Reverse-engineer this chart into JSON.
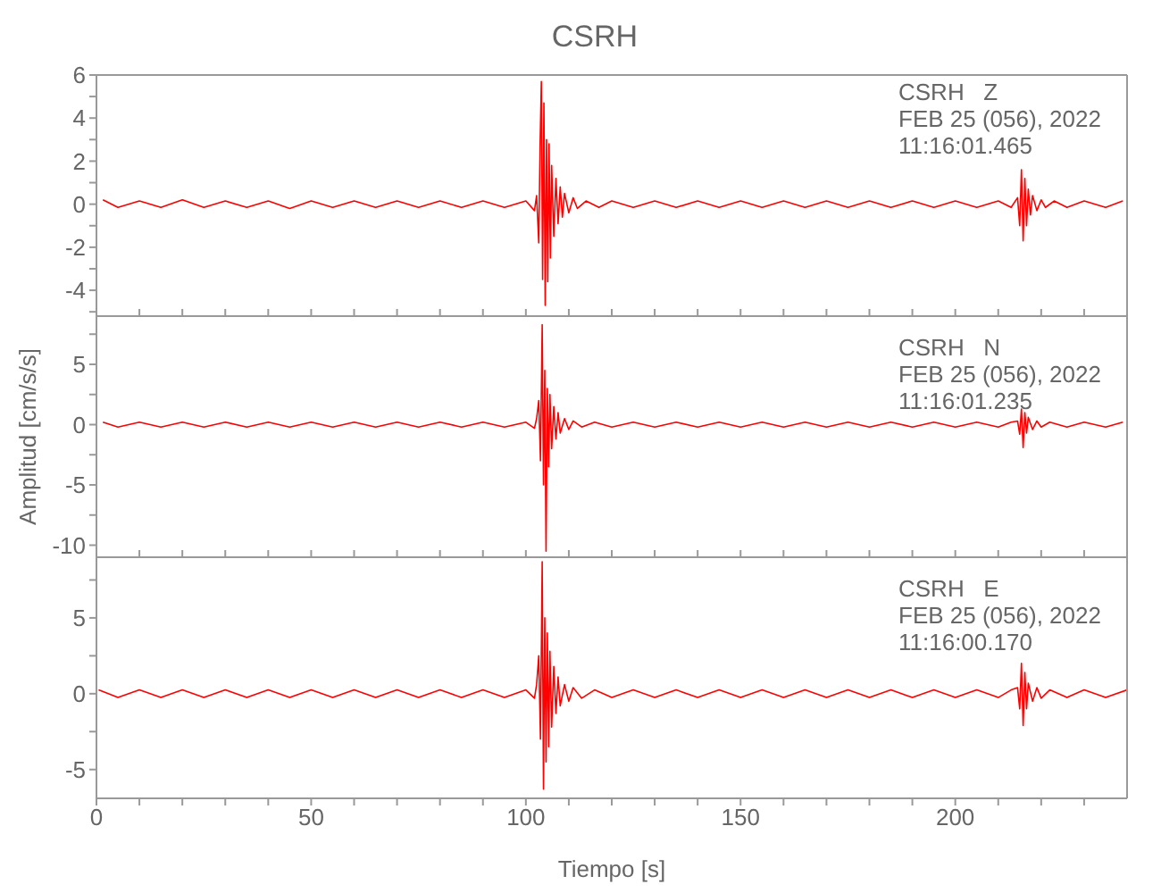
{
  "chart_data": [
    {
      "type": "line",
      "title": "CSRH",
      "annotations": [
        "CSRH   Z",
        "FEB 25 (056), 2022",
        "11:16:01.465"
      ],
      "tick_labels": "y",
      "marker": "none",
      "xlim": [
        0,
        240
      ],
      "ylim": [
        -5.2,
        6
      ],
      "xticks": [
        0,
        10,
        20,
        30,
        40,
        50,
        60,
        70,
        80,
        90,
        100,
        110,
        120,
        130,
        140,
        150,
        160,
        170,
        180,
        190,
        200,
        210,
        220,
        230
      ],
      "yticks": [
        {
          "value": -5,
          "label": null
        },
        -4,
        {
          "value": -3,
          "label": null
        },
        -2,
        {
          "value": -1,
          "label": null
        },
        0,
        {
          "value": 1,
          "label": null
        },
        2,
        {
          "value": 3,
          "label": null
        },
        4,
        {
          "value": 5,
          "label": null
        },
        6
      ],
      "series": [
        {
          "color": "#ff0000",
          "x": [
            1.5,
            5,
            10,
            15,
            20,
            25,
            30,
            35,
            40,
            45,
            50,
            55,
            60,
            65,
            70,
            75,
            80,
            85,
            90,
            95,
            100,
            102,
            102.5,
            103,
            103.3,
            103.6,
            103.9,
            104.2,
            104.5,
            104.8,
            105.1,
            105.4,
            105.7,
            106,
            106.5,
            107,
            107.5,
            108,
            108.5,
            109,
            110,
            111,
            112,
            114,
            117,
            120,
            125,
            130,
            135,
            140,
            145,
            150,
            155,
            160,
            165,
            170,
            175,
            180,
            185,
            190,
            195,
            200,
            205,
            210,
            213,
            214.5,
            215,
            215.4,
            215.8,
            216.2,
            216.6,
            217,
            217.5,
            218,
            219,
            220,
            221,
            223,
            226,
            230,
            235,
            239
          ],
          "values": [
            0.2,
            -0.15,
            0.15,
            -0.15,
            0.2,
            -0.15,
            0.15,
            -0.15,
            0.15,
            -0.2,
            0.15,
            -0.15,
            0.15,
            -0.15,
            0.15,
            -0.15,
            0.15,
            -0.15,
            0.15,
            -0.15,
            0.15,
            -0.3,
            0.4,
            -1.8,
            2.6,
            5.7,
            -3.5,
            4.7,
            -4.7,
            3.0,
            -3.6,
            2.8,
            -2.5,
            1.8,
            -1.5,
            1.2,
            -0.9,
            0.8,
            -0.6,
            0.5,
            -0.4,
            0.3,
            -0.2,
            0.15,
            -0.15,
            0.15,
            -0.15,
            0.15,
            -0.15,
            0.15,
            -0.15,
            0.15,
            -0.15,
            0.15,
            -0.15,
            0.15,
            -0.15,
            0.15,
            -0.15,
            0.15,
            -0.15,
            0.15,
            -0.15,
            0.15,
            -0.15,
            0.3,
            -1.0,
            1.6,
            -1.7,
            1.2,
            -1.0,
            0.7,
            -0.5,
            0.4,
            -0.3,
            0.2,
            -0.15,
            0.15,
            -0.15,
            0.15,
            -0.15,
            0.15
          ]
        }
      ]
    },
    {
      "type": "line",
      "ylabel": "Amplitud [cm/s/s]",
      "annotations": [
        "CSRH   N",
        "FEB 25 (056), 2022",
        "11:16:01.235"
      ],
      "tick_labels": "y",
      "marker": "none",
      "xlim": [
        0,
        240
      ],
      "ylim": [
        -11,
        9
      ],
      "xticks": [
        0,
        10,
        20,
        30,
        40,
        50,
        60,
        70,
        80,
        90,
        100,
        110,
        120,
        130,
        140,
        150,
        160,
        170,
        180,
        190,
        200,
        210,
        220,
        230
      ],
      "yticks": [
        -10,
        {
          "value": -7.5,
          "label": null
        },
        -5,
        {
          "value": -2.5,
          "label": null
        },
        0,
        {
          "value": 2.5,
          "label": null
        },
        5,
        {
          "value": 7.5,
          "label": null
        }
      ],
      "series": [
        {
          "color": "#ff0000",
          "x": [
            1.5,
            5,
            10,
            15,
            20,
            25,
            30,
            35,
            40,
            45,
            50,
            55,
            60,
            65,
            70,
            75,
            80,
            85,
            90,
            95,
            100,
            102,
            102.5,
            103,
            103.4,
            103.8,
            104.1,
            104.4,
            104.7,
            105,
            105.3,
            105.6,
            106,
            106.5,
            107,
            107.5,
            108,
            109,
            110,
            111,
            113,
            116,
            120,
            125,
            130,
            135,
            140,
            145,
            150,
            155,
            160,
            165,
            170,
            175,
            180,
            185,
            190,
            195,
            200,
            205,
            210,
            213,
            214.5,
            215,
            215.4,
            215.8,
            216.2,
            216.6,
            217,
            218,
            219,
            220,
            222,
            226,
            230,
            235,
            239
          ],
          "values": [
            0.2,
            -0.2,
            0.2,
            -0.2,
            0.2,
            -0.2,
            0.2,
            -0.2,
            0.2,
            -0.2,
            0.2,
            -0.2,
            0.2,
            -0.2,
            0.2,
            -0.2,
            0.2,
            -0.2,
            0.2,
            -0.2,
            0.2,
            -0.3,
            0.5,
            2.0,
            -3.0,
            8.3,
            -5.0,
            4.5,
            -10.5,
            3.0,
            -3.5,
            2.5,
            -2.0,
            1.5,
            -1.2,
            1.0,
            -0.7,
            0.5,
            -0.4,
            0.3,
            -0.2,
            0.2,
            -0.2,
            0.2,
            -0.2,
            0.2,
            -0.2,
            0.2,
            -0.2,
            0.2,
            -0.2,
            0.2,
            -0.2,
            0.2,
            -0.2,
            0.2,
            -0.2,
            0.2,
            -0.2,
            0.2,
            -0.2,
            0.2,
            0.3,
            -0.8,
            1.3,
            -1.9,
            1.0,
            -0.7,
            0.6,
            -0.4,
            0.3,
            -0.2,
            0.2,
            -0.2,
            0.2,
            -0.2,
            0.2
          ]
        }
      ]
    },
    {
      "type": "line",
      "xlabel": "Tiempo [s]",
      "annotations": [
        "CSRH   E",
        "FEB 25 (056), 2022",
        "11:16:00.170"
      ],
      "marker": "none",
      "xlim": [
        0,
        240
      ],
      "ylim": [
        -6.9,
        9
      ],
      "xticks": [
        0,
        {
          "value": 10,
          "label": null
        },
        {
          "value": 20,
          "label": null
        },
        {
          "value": 30,
          "label": null
        },
        {
          "value": 40,
          "label": null
        },
        50,
        {
          "value": 60,
          "label": null
        },
        {
          "value": 70,
          "label": null
        },
        {
          "value": 80,
          "label": null
        },
        {
          "value": 90,
          "label": null
        },
        100,
        {
          "value": 110,
          "label": null
        },
        {
          "value": 120,
          "label": null
        },
        {
          "value": 130,
          "label": null
        },
        {
          "value": 140,
          "label": null
        },
        150,
        {
          "value": 160,
          "label": null
        },
        {
          "value": 170,
          "label": null
        },
        {
          "value": 180,
          "label": null
        },
        {
          "value": 190,
          "label": null
        },
        200,
        {
          "value": 210,
          "label": null
        },
        {
          "value": 220,
          "label": null
        },
        {
          "value": 230,
          "label": null
        }
      ],
      "yticks": [
        -5,
        {
          "value": -2.5,
          "label": null
        },
        0,
        {
          "value": 2.5,
          "label": null
        },
        5,
        {
          "value": 7.5,
          "label": null
        }
      ],
      "series": [
        {
          "color": "#ff0000",
          "x": [
            0.5,
            5,
            10,
            15,
            20,
            25,
            30,
            35,
            40,
            45,
            50,
            55,
            60,
            65,
            70,
            75,
            80,
            85,
            90,
            95,
            100,
            102,
            102.5,
            103,
            103.4,
            103.8,
            104.1,
            104.4,
            104.7,
            105,
            105.3,
            105.6,
            106,
            106.5,
            107,
            107.5,
            108,
            109,
            110,
            111,
            113,
            116,
            120,
            125,
            130,
            135,
            140,
            145,
            150,
            155,
            160,
            165,
            170,
            175,
            180,
            185,
            190,
            195,
            200,
            205,
            210,
            213,
            214.5,
            215,
            215.4,
            215.8,
            216.2,
            216.6,
            217,
            218,
            219,
            220,
            222,
            226,
            230,
            235,
            240
          ],
          "values": [
            0.25,
            -0.25,
            0.25,
            -0.25,
            0.25,
            -0.25,
            0.25,
            -0.25,
            0.25,
            -0.25,
            0.25,
            -0.25,
            0.25,
            -0.25,
            0.25,
            -0.25,
            0.25,
            -0.25,
            0.25,
            -0.25,
            0.25,
            -0.3,
            0.6,
            2.5,
            -3.0,
            8.7,
            -6.3,
            5.0,
            -4.5,
            4.0,
            -3.5,
            2.8,
            -2.2,
            1.8,
            -1.3,
            1.1,
            -0.8,
            0.6,
            -0.5,
            0.4,
            -0.3,
            0.25,
            -0.25,
            0.25,
            -0.25,
            0.25,
            -0.25,
            0.25,
            -0.25,
            0.25,
            -0.25,
            0.25,
            -0.25,
            0.25,
            -0.25,
            0.25,
            -0.25,
            0.25,
            -0.25,
            0.25,
            -0.25,
            0.25,
            0.4,
            -1.0,
            2.0,
            -2.1,
            1.4,
            -1.0,
            0.7,
            -0.5,
            0.4,
            -0.3,
            0.25,
            -0.25,
            0.25,
            -0.25,
            0.25
          ]
        }
      ]
    }
  ]
}
